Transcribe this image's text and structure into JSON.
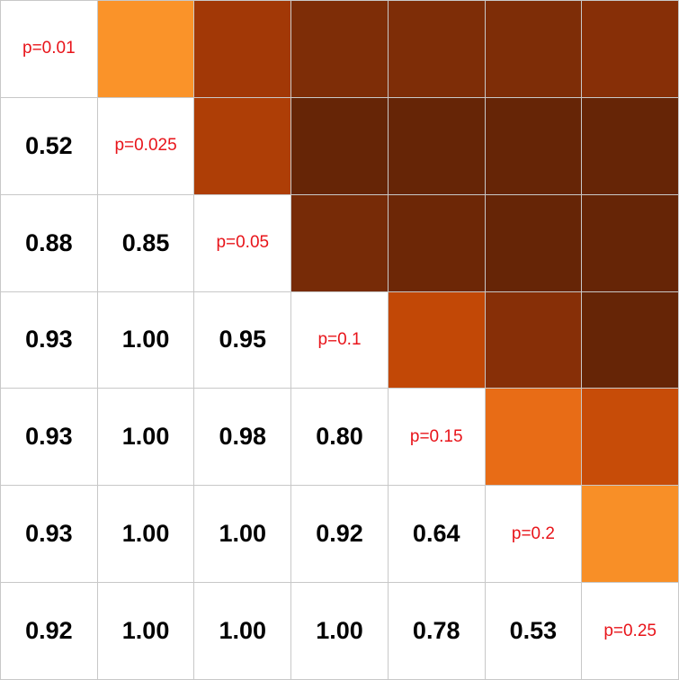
{
  "chart_data": {
    "type": "heatmap",
    "labels": [
      "p=0.01",
      "p=0.025",
      "p=0.05",
      "p=0.1",
      "p=0.15",
      "p=0.2",
      "p=0.25"
    ],
    "lower_triangle_values": [
      [
        null,
        null,
        null,
        null,
        null,
        null,
        null
      ],
      [
        0.52,
        null,
        null,
        null,
        null,
        null,
        null
      ],
      [
        0.88,
        0.85,
        null,
        null,
        null,
        null,
        null
      ],
      [
        0.93,
        1.0,
        0.95,
        null,
        null,
        null,
        null
      ],
      [
        0.93,
        1.0,
        0.98,
        0.8,
        null,
        null,
        null
      ],
      [
        0.93,
        1.0,
        1.0,
        0.92,
        0.64,
        null,
        null
      ],
      [
        0.92,
        1.0,
        1.0,
        1.0,
        0.78,
        0.53,
        null
      ]
    ],
    "display_text": [
      [
        null,
        null,
        null,
        null,
        null,
        null,
        null
      ],
      [
        "0.52",
        null,
        null,
        null,
        null,
        null,
        null
      ],
      [
        "0.88",
        "0.85",
        null,
        null,
        null,
        null,
        null
      ],
      [
        "0.93",
        "1.00",
        "0.95",
        null,
        null,
        null,
        null
      ],
      [
        "0.93",
        "1.00",
        "0.98",
        "0.80",
        null,
        null,
        null
      ],
      [
        "0.93",
        "1.00",
        "1.00",
        "0.92",
        "0.64",
        null,
        null
      ],
      [
        "0.92",
        "1.00",
        "1.00",
        "1.00",
        "0.78",
        "0.53",
        null
      ]
    ],
    "colors": {
      "label_text": "#e8141a",
      "value_text": "#000000",
      "grid": "#c8c8c8",
      "background": "#ffffff"
    }
  }
}
